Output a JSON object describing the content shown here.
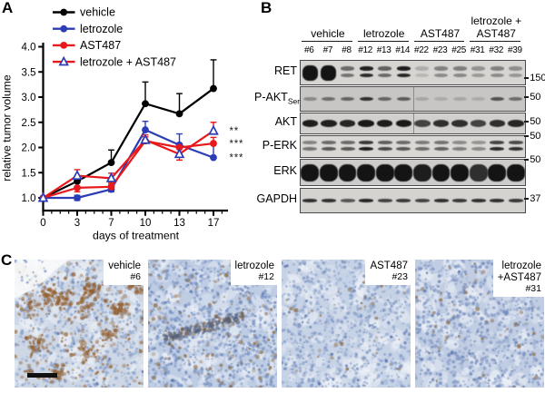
{
  "panels": {
    "a": "A",
    "b": "B",
    "c": "C"
  },
  "colors": {
    "blue": "#2b3cb5",
    "red": "#e8191c",
    "black": "#000000",
    "sig": "#1a1a1a"
  },
  "chart_data": {
    "type": "line",
    "x": [
      0,
      3,
      7,
      10,
      13,
      17
    ],
    "xlabel": "days of treatment",
    "ylabel": "relative tumor volume",
    "ylim": [
      1.0,
      4.0
    ],
    "yticks": [
      1.0,
      1.5,
      2.0,
      2.5,
      3.0,
      3.5,
      4.0
    ],
    "grid": false,
    "legend_position": "top-left",
    "series": [
      {
        "name": "vehicle",
        "color": "#000000",
        "marker": "circle",
        "values": [
          1.0,
          1.33,
          1.7,
          2.87,
          2.67,
          3.17
        ],
        "err_up": [
          0.04,
          0.1,
          0.25,
          0.43,
          0.4,
          0.57
        ],
        "err_down": [
          0,
          0,
          0,
          0,
          0,
          0
        ]
      },
      {
        "name": "letrozole",
        "color": "#2b3cb5",
        "marker": "circle",
        "values": [
          1.0,
          1.0,
          1.17,
          2.35,
          2.05,
          1.8
        ],
        "err_up": [
          0.04,
          0.05,
          0.05,
          0.17,
          0.22,
          0.25
        ],
        "err_down": [
          0.04,
          0.05,
          0.05,
          0,
          0.18,
          0
        ]
      },
      {
        "name": "AST487",
        "color": "#e8191c",
        "marker": "circle",
        "values": [
          1.0,
          1.2,
          1.22,
          2.13,
          2.0,
          2.08
        ],
        "err_up": [
          0.04,
          0.1,
          0.08,
          0.12,
          0.08,
          0.12
        ],
        "err_down": [
          0,
          0.08,
          0,
          0,
          0,
          0
        ]
      },
      {
        "name": "letrozole + AST487",
        "color": "#e8191c",
        "marker": "triangle-open",
        "marker_stroke": "#2b3cb5",
        "values": [
          1.0,
          1.44,
          1.39,
          2.15,
          1.87,
          2.33
        ],
        "err_up": [
          0.04,
          0.12,
          0.1,
          0.06,
          0.04,
          0.17
        ],
        "err_down": [
          0,
          0,
          0.12,
          0,
          0.12,
          0
        ]
      }
    ],
    "significance": [
      {
        "label": "**",
        "series": "letrozole + AST487",
        "at_value": 2.33
      },
      {
        "label": "***",
        "series": "AST487",
        "at_value": 2.08
      },
      {
        "label": "***",
        "series": "letrozole",
        "at_value": 1.8
      }
    ]
  },
  "blot": {
    "groups": [
      {
        "label_lines": [
          "vehicle"
        ],
        "lanes": [
          "#6",
          "#7",
          "#8"
        ]
      },
      {
        "label_lines": [
          "letrozole"
        ],
        "lanes": [
          "#12",
          "#13",
          "#14"
        ]
      },
      {
        "label_lines": [
          "AST487"
        ],
        "lanes": [
          "#22",
          "#23",
          "#25"
        ]
      },
      {
        "label_lines": [
          "letrozole +",
          "AST487"
        ],
        "lanes": [
          "#31",
          "#32",
          "#39"
        ]
      }
    ],
    "rows": [
      {
        "label": "RET",
        "marker": "150",
        "marker_pos": "bottom",
        "type": "doublet",
        "bg": "#d7d5d2",
        "intensities": [
          0.97,
          1.0,
          0.5,
          0.88,
          0.55,
          0.9,
          0.15,
          0.38,
          0.4,
          0.3,
          0.38,
          0.32
        ]
      },
      {
        "label": "P-AKT",
        "label_sub": "Ser473",
        "marker": "50",
        "marker_pos": "middle",
        "type": "single",
        "divider": true,
        "bg": "#c8c6c4",
        "intensities": [
          0.35,
          0.5,
          0.55,
          0.85,
          0.55,
          0.6,
          0.18,
          0.15,
          0.18,
          0.15,
          0.65,
          0.5
        ]
      },
      {
        "label": "AKT",
        "marker": "50",
        "marker_pos": "middle",
        "type": "thick",
        "divider": true,
        "bg": "#d2d0ce",
        "intensities": [
          0.95,
          0.93,
          0.9,
          0.97,
          0.95,
          0.97,
          0.75,
          0.85,
          0.85,
          0.75,
          0.85,
          0.9
        ]
      },
      {
        "label": "P-ERK",
        "marker": "50",
        "marker_pos": "top",
        "type": "doublet2",
        "bg": "#dad8d5",
        "intensities": [
          0.5,
          0.65,
          0.65,
          0.95,
          0.72,
          0.65,
          0.55,
          0.6,
          0.45,
          0.4,
          0.88,
          0.85
        ]
      },
      {
        "label": "ERK",
        "marker": "50",
        "marker_pos": "top",
        "type": "blob",
        "bg": "#ceccca",
        "intensities": [
          1,
          1,
          1,
          1,
          1,
          1,
          0.95,
          1,
          1,
          0.85,
          1,
          1
        ]
      },
      {
        "label": "GAPDH",
        "marker": "37",
        "marker_pos": "middle",
        "type": "thin",
        "bg": "#d5d3d0",
        "intensities": [
          0.85,
          0.85,
          0.65,
          0.9,
          0.75,
          0.8,
          0.75,
          0.85,
          0.8,
          0.85,
          0.85,
          0.8
        ]
      }
    ]
  },
  "ihc": {
    "images": [
      {
        "label_lines": [
          "vehicle",
          "#6"
        ],
        "base": "#cdd7e6",
        "blue_dot": "#7e99c6",
        "brown": "#936030",
        "brown_density": 0.5,
        "blue_density": 0.45,
        "features": [
          "edge-white-topleft",
          "brown-clusters",
          "scale-bar"
        ]
      },
      {
        "label_lines": [
          "letrozole",
          "#12"
        ],
        "base": "#bfcde4",
        "blue_dot": "#6c88bd",
        "brown": "#8a6a45",
        "brown_density": 0.1,
        "blue_density": 0.62,
        "features": [
          "center-streak"
        ]
      },
      {
        "label_lines": [
          "AST487",
          "#23"
        ],
        "base": "#c6d2e6",
        "blue_dot": "#7993c2",
        "brown": "#8a6a45",
        "brown_density": 0.03,
        "blue_density": 0.58,
        "features": []
      },
      {
        "label_lines": [
          "letrozole",
          "+AST487",
          "#31"
        ],
        "base": "#c0cde3",
        "blue_dot": "#7089bd",
        "brown": "#8a6a45",
        "brown_density": 0.04,
        "blue_density": 0.6,
        "features": [
          "light-patches"
        ]
      }
    ]
  }
}
